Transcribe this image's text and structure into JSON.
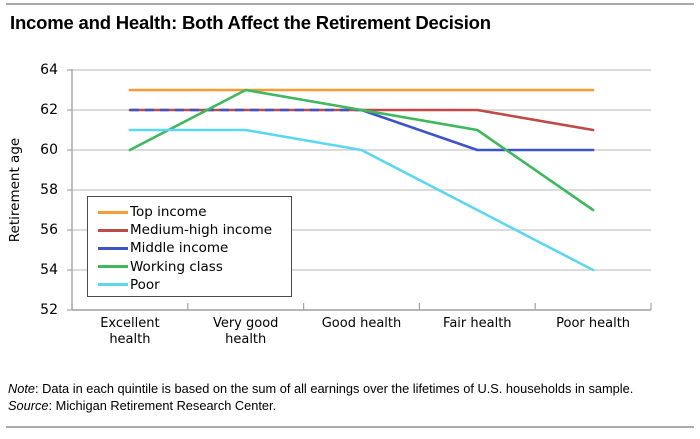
{
  "page": {
    "title": "Income and Health: Both Affect the Retirement Decision",
    "note_label": "Note",
    "note_rest": ": Data in each quintile is based on the sum of all earnings over the lifetimes of U.S. households in sample.",
    "source_label": "Source",
    "source_rest": ": Michigan Retirement Research Center.",
    "rule_color": "#ABABAB"
  },
  "chart_data": {
    "type": "line",
    "title": "Income and Health: Both Affect the Retirement Decision",
    "xlabel": "",
    "ylabel": "Retirement age",
    "categories": [
      "Excellent health",
      "Very good health",
      "Good health",
      "Fair health",
      "Poor health"
    ],
    "tick_labels": [
      [
        "Excellent",
        "health"
      ],
      [
        "Very good",
        "health"
      ],
      [
        "Good health"
      ],
      [
        "Fair health"
      ],
      [
        "Poor health"
      ]
    ],
    "ylim": [
      52,
      64
    ],
    "yticks": [
      52,
      54,
      56,
      58,
      60,
      62,
      64
    ],
    "grid": "horizontal",
    "legend_position": "inside-bottom-left",
    "style": {
      "grid_color": "#C8C8C8",
      "axis_color": "#A4A4A4",
      "line_width": 2.6
    },
    "series": [
      {
        "name": "Top income",
        "color": "#F79B33",
        "values": [
          63,
          63,
          63,
          63,
          63
        ]
      },
      {
        "name": "Medium-high income",
        "color": "#BE4B48",
        "values": [
          62,
          62,
          62,
          62,
          61
        ]
      },
      {
        "name": "Middle income",
        "color": "#3E53C8",
        "values": [
          62,
          62,
          62,
          60,
          60
        ],
        "dash": {
          "from": 0,
          "to": 2,
          "pattern": [
            9,
            6
          ],
          "note_overlaps": "Medium-high income"
        }
      },
      {
        "name": "Working class",
        "color": "#3FB75D",
        "values": [
          60,
          63,
          62,
          61,
          57
        ]
      },
      {
        "name": "Poor",
        "color": "#5DD7F0",
        "values": [
          61,
          61,
          60,
          57,
          54
        ]
      }
    ]
  }
}
